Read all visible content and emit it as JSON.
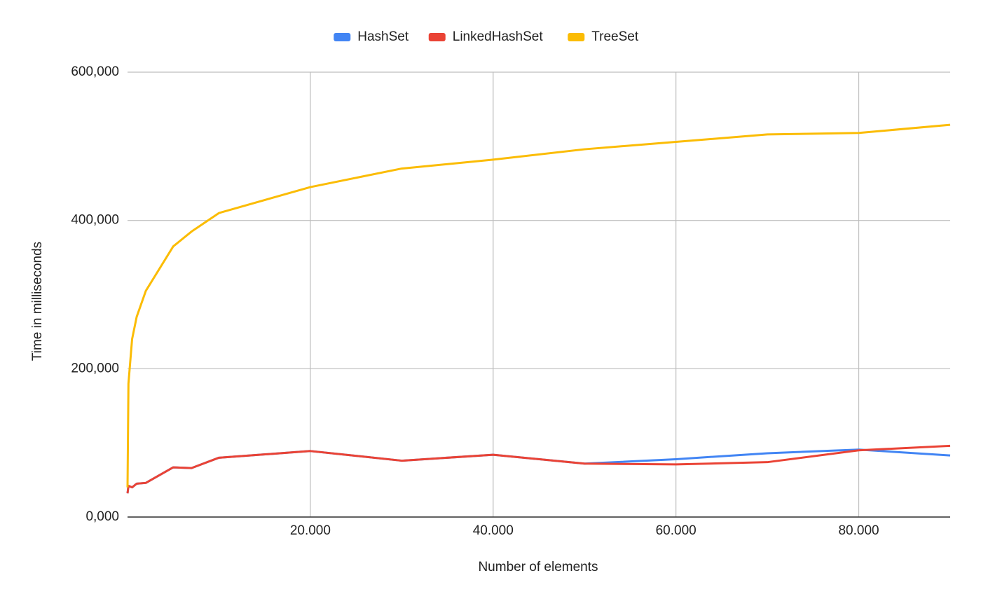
{
  "chart_data": {
    "type": "line",
    "x_label": "Number of elements",
    "y_label": "Time in milliseconds",
    "x": [
      0,
      100,
      500,
      1000,
      2000,
      5000,
      7000,
      10000,
      20000,
      30000,
      40000,
      50000,
      60000,
      70000,
      80000,
      90000
    ],
    "series": [
      {
        "name": "HashSet",
        "color": "#4285f4",
        "values": [
          32000,
          42000,
          40000,
          45000,
          46000,
          67000,
          66000,
          80000,
          89000,
          76000,
          84000,
          72000,
          78000,
          86000,
          91000,
          83000
        ]
      },
      {
        "name": "LinkedHashSet",
        "color": "#ea4335",
        "values": [
          32000,
          42000,
          40000,
          45000,
          46000,
          67000,
          66000,
          80000,
          89000,
          76000,
          84000,
          72000,
          71000,
          74000,
          90000,
          96000
        ]
      },
      {
        "name": "TreeSet",
        "color": "#fbbc04",
        "values": [
          40000,
          180000,
          240000,
          270000,
          305000,
          365000,
          385000,
          410000,
          445000,
          470000,
          482000,
          496000,
          506000,
          516000,
          518000,
          529000
        ]
      }
    ],
    "xlim": [
      0,
      90000
    ],
    "ylim": [
      0,
      600000
    ],
    "xticks": [
      {
        "value": 20000,
        "label": "20.000"
      },
      {
        "value": 40000,
        "label": "40.000"
      },
      {
        "value": 60000,
        "label": "60.000"
      },
      {
        "value": 80000,
        "label": "80.000"
      }
    ],
    "yticks": [
      {
        "value": 0,
        "label": "0,000"
      },
      {
        "value": 200000,
        "label": "200,000"
      },
      {
        "value": 400000,
        "label": "400,000"
      },
      {
        "value": 600000,
        "label": "600,000"
      }
    ],
    "grid": true,
    "legend": "top"
  }
}
